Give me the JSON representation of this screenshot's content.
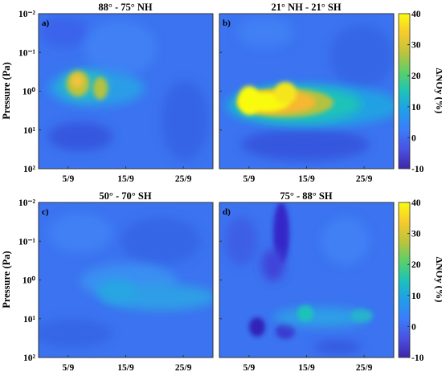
{
  "chart_data": [
    {
      "type": "heatmap",
      "panel": "a)",
      "title": "88° - 75° NH",
      "ylabel": "Pressure (Pa)",
      "yscale": "log",
      "y_reversed": true,
      "ylim": [
        0.01,
        100
      ],
      "y_ticks": [
        "10⁻²",
        "10⁻¹",
        "10⁰",
        "10¹",
        "10²"
      ],
      "x_ticks": [
        "5/9",
        "15/9",
        "25/9"
      ],
      "hotspots": [
        {
          "date": "3/9",
          "pressure": 0.7,
          "value": 32
        },
        {
          "date": "8/9",
          "pressure": 1.0,
          "value": 24
        }
      ],
      "background_value": 3
    },
    {
      "type": "heatmap",
      "panel": "b)",
      "title": "21° NH  - 21° SH",
      "yscale": "log",
      "y_reversed": true,
      "ylim": [
        0.01,
        100
      ],
      "x_ticks": [
        "5/9",
        "15/9",
        "25/9"
      ],
      "hotspots": [
        {
          "date": "4/9",
          "pressure": 2.5,
          "value": 40
        },
        {
          "date": "12/9",
          "pressure": 3.0,
          "value": 35
        },
        {
          "date": "22/9",
          "pressure": 3.0,
          "value": 15
        }
      ],
      "background_value": 3
    },
    {
      "type": "heatmap",
      "panel": "c)",
      "title": "50° - 70° SH",
      "ylabel": "Pressure (Pa)",
      "yscale": "log",
      "y_reversed": true,
      "ylim": [
        0.01,
        100
      ],
      "y_ticks": [
        "10⁻²",
        "10⁻¹",
        "10⁰",
        "10¹",
        "10²"
      ],
      "x_ticks": [
        "5/9",
        "15/9",
        "25/9"
      ],
      "hotspots": [
        {
          "date": "15/9",
          "pressure": 5,
          "value": 8
        }
      ],
      "background_value": 3
    },
    {
      "type": "heatmap",
      "panel": "d)",
      "title": "75° - 88° SH",
      "yscale": "log",
      "y_reversed": true,
      "ylim": [
        0.01,
        100
      ],
      "x_ticks": [
        "5/9",
        "15/9",
        "25/9"
      ],
      "hotspots": [
        {
          "date": "15/9",
          "pressure": 6,
          "value": 12
        },
        {
          "date": "22/9",
          "pressure": 8,
          "value": 8
        }
      ],
      "lowspots": [
        {
          "date": "12/9",
          "pressure": 0.05,
          "value": -8
        },
        {
          "date": "10/9",
          "pressure": 15,
          "value": -8
        },
        {
          "date": "14/9",
          "pressure": 20,
          "value": -6
        }
      ],
      "background_value": 2
    }
  ],
  "colorbar": {
    "label": "ΔNOy (%)",
    "ticks": [
      "40",
      "30",
      "20",
      "10",
      "0",
      "-10"
    ],
    "range": [
      -10,
      40
    ],
    "colors": [
      "#3e26a8",
      "#4a50e2",
      "#3b7cfb",
      "#1fa0e8",
      "#1ec3b8",
      "#58d06a",
      "#bfc33a",
      "#f7cb2c",
      "#f9fb0e"
    ]
  }
}
